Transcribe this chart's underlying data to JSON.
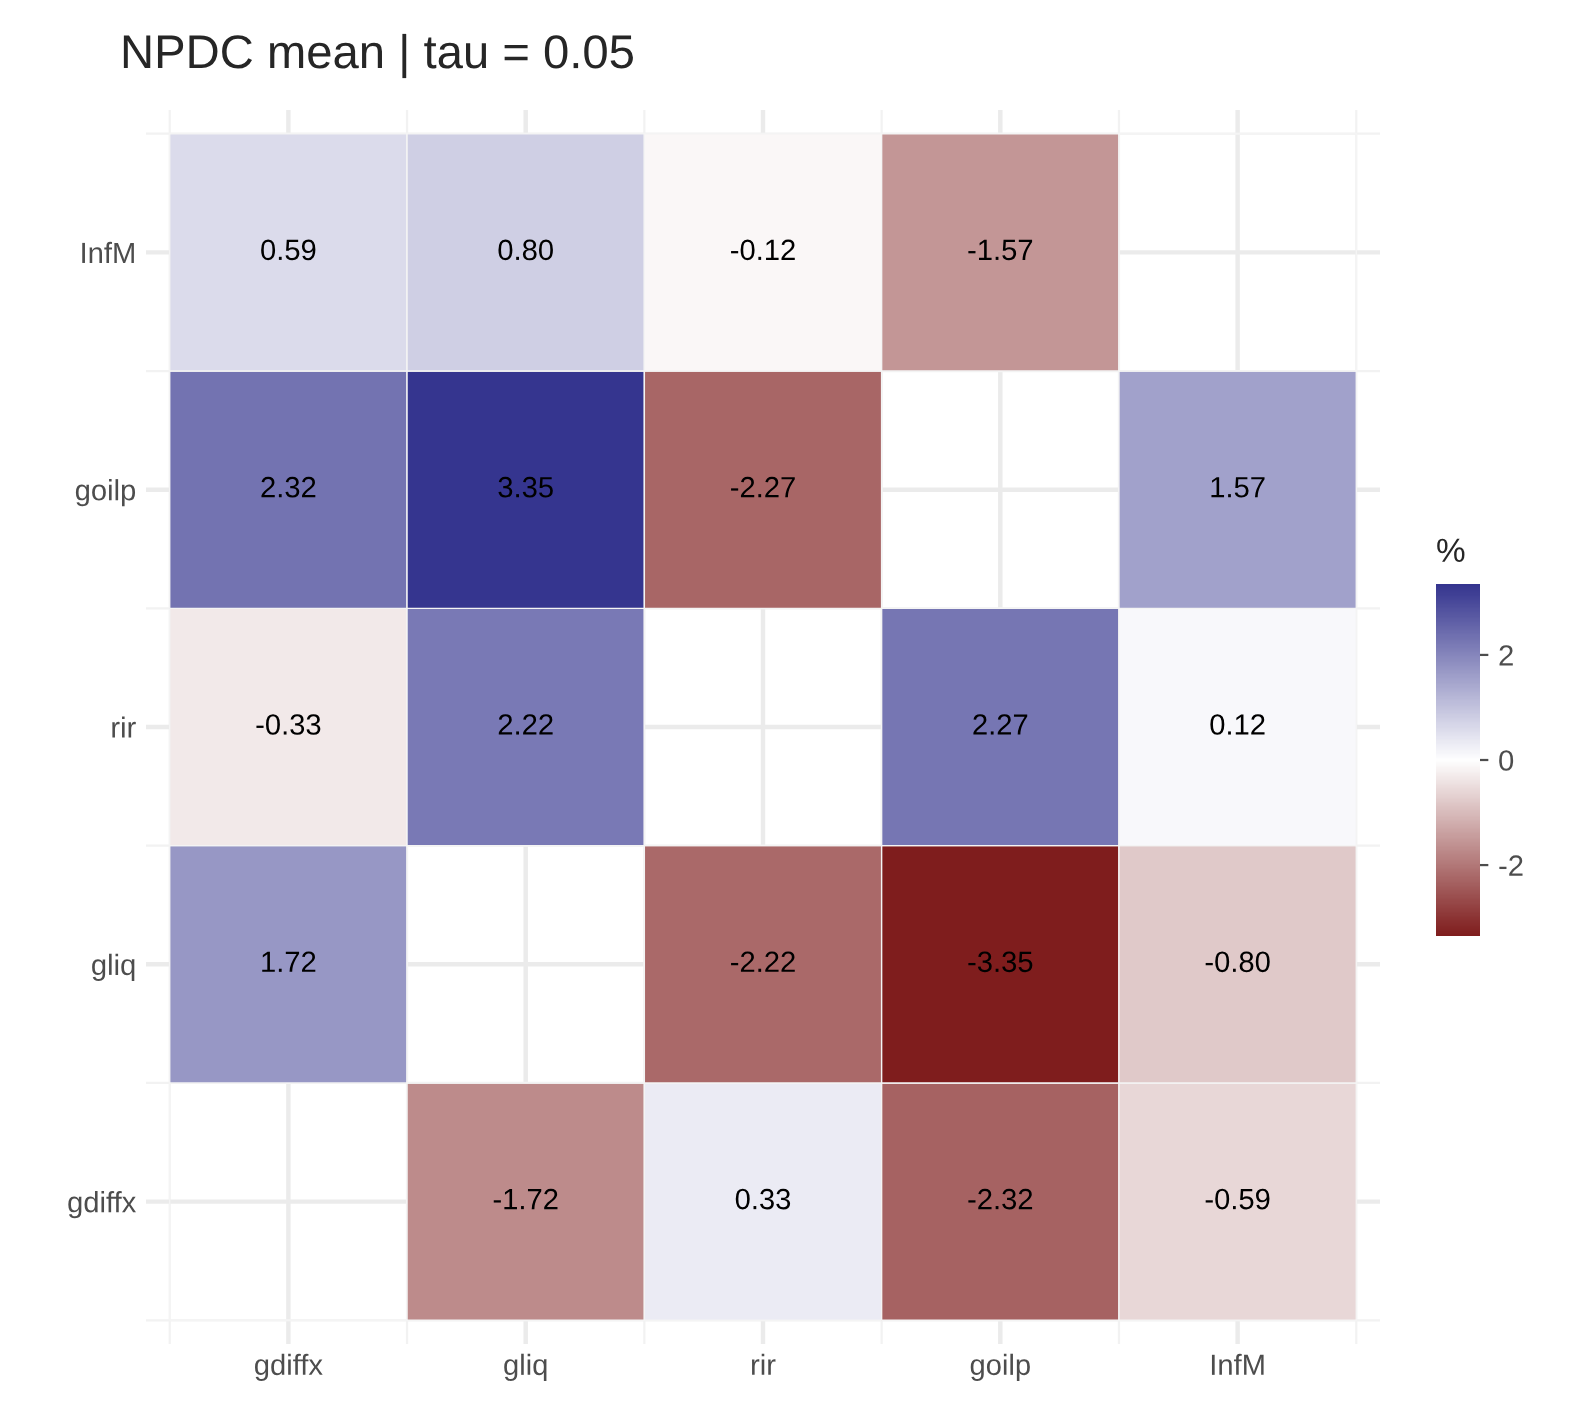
{
  "chart_data": {
    "type": "heatmap",
    "title": "NPDC mean | tau = 0.05",
    "categories": [
      "gdiffx",
      "gliq",
      "rir",
      "goilp",
      "InfM"
    ],
    "y_categories": [
      "InfM",
      "goilp",
      "rir",
      "gliq",
      "gdiffx"
    ],
    "cells": [
      [
        0.59,
        0.8,
        -0.12,
        -1.57,
        null
      ],
      [
        2.32,
        3.35,
        -2.27,
        null,
        1.57
      ],
      [
        -0.33,
        2.22,
        null,
        2.27,
        0.12
      ],
      [
        1.72,
        null,
        -2.22,
        -3.35,
        -0.8
      ],
      [
        null,
        -1.72,
        0.33,
        -2.32,
        -0.59
      ]
    ],
    "cell_labels": [
      [
        "0.59",
        "0.80",
        "-0.12",
        "-1.57",
        null
      ],
      [
        "2.32",
        "3.35",
        "-2.27",
        null,
        "1.57"
      ],
      [
        "-0.33",
        "2.22",
        null,
        "2.27",
        "0.12"
      ],
      [
        "1.72",
        null,
        "-2.22",
        "-3.35",
        "-0.80"
      ],
      [
        null,
        "-1.72",
        "0.33",
        "-2.32",
        "-0.59"
      ]
    ],
    "clabel": "%",
    "clim": [
      -3.35,
      3.35
    ],
    "cticks": [
      -2,
      0,
      2
    ],
    "colors": [
      "#7f1d1d",
      "#ffffff",
      "#35358f"
    ],
    "grid": true
  }
}
